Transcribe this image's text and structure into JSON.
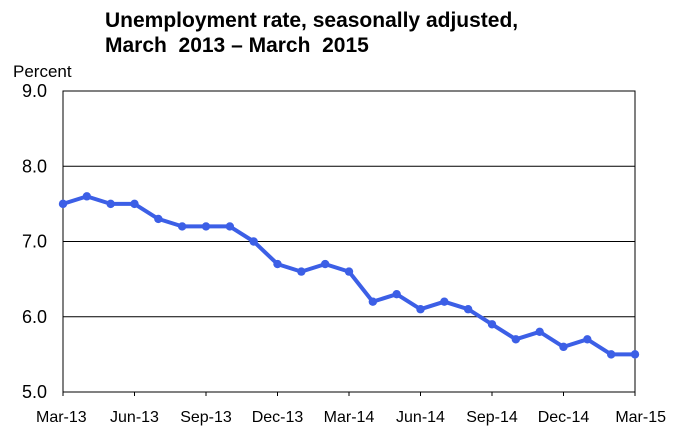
{
  "chart_data": {
    "type": "line",
    "title_line1": "Unemployment rate, seasonally adjusted,",
    "title_line2": "March  2013 – March  2015",
    "ylabel": "Percent",
    "xlabel": "",
    "ylim": [
      5.0,
      9.0
    ],
    "yticks": [
      "5.0",
      "6.0",
      "7.0",
      "8.0",
      "9.0"
    ],
    "xtick_labels": [
      "Mar-13",
      "Jun-13",
      "Sep-13",
      "Dec-13",
      "Mar-14",
      "Jun-14",
      "Sep-14",
      "Dec-14",
      "Mar-15"
    ],
    "xtick_indices": [
      0,
      3,
      6,
      9,
      12,
      15,
      18,
      21,
      24
    ],
    "grid": true,
    "series": [
      {
        "values": [
          7.5,
          7.6,
          7.5,
          7.5,
          7.3,
          7.2,
          7.2,
          7.2,
          7.0,
          6.7,
          6.6,
          6.7,
          6.6,
          6.2,
          6.3,
          6.1,
          6.2,
          6.1,
          5.9,
          5.7,
          5.8,
          5.6,
          5.7,
          5.5,
          5.5
        ],
        "color": "#3C5FE6"
      }
    ]
  }
}
